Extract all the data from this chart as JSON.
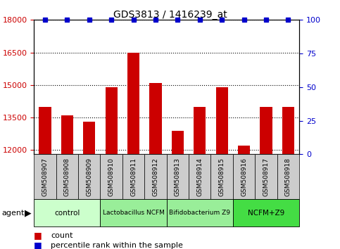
{
  "title": "GDS3813 / 1416239_at",
  "samples": [
    "GSM508907",
    "GSM508908",
    "GSM508909",
    "GSM508910",
    "GSM508911",
    "GSM508912",
    "GSM508913",
    "GSM508914",
    "GSM508915",
    "GSM508916",
    "GSM508917",
    "GSM508918"
  ],
  "counts": [
    14000,
    13600,
    13300,
    14900,
    16500,
    15100,
    12900,
    14000,
    14900,
    12200,
    14000,
    14000
  ],
  "percentile": [
    100,
    100,
    100,
    100,
    100,
    100,
    100,
    100,
    100,
    100,
    100,
    100
  ],
  "ylim_left": [
    11800,
    18000
  ],
  "ylim_right": [
    0,
    100
  ],
  "yticks_left": [
    12000,
    13500,
    15000,
    16500,
    18000
  ],
  "yticks_right": [
    0,
    25,
    50,
    75,
    100
  ],
  "bar_color": "#cc0000",
  "dot_color": "#0000cc",
  "groups": [
    {
      "label": "control",
      "start": 0,
      "end": 3,
      "color": "#ccffcc"
    },
    {
      "label": "Lactobacillus NCFM",
      "start": 3,
      "end": 6,
      "color": "#99ee99"
    },
    {
      "label": "Bifidobacterium Z9",
      "start": 6,
      "end": 9,
      "color": "#99ee99"
    },
    {
      "label": "NCFM+Z9",
      "start": 9,
      "end": 12,
      "color": "#44dd44"
    }
  ],
  "agent_label": "agent",
  "legend_count_label": "count",
  "legend_percentile_label": "percentile rank within the sample",
  "background_color": "#ffffff",
  "tick_label_color_left": "#cc0000",
  "tick_label_color_right": "#0000cc",
  "sample_box_color": "#cccccc",
  "title_fontsize": 10,
  "bar_width": 0.55
}
